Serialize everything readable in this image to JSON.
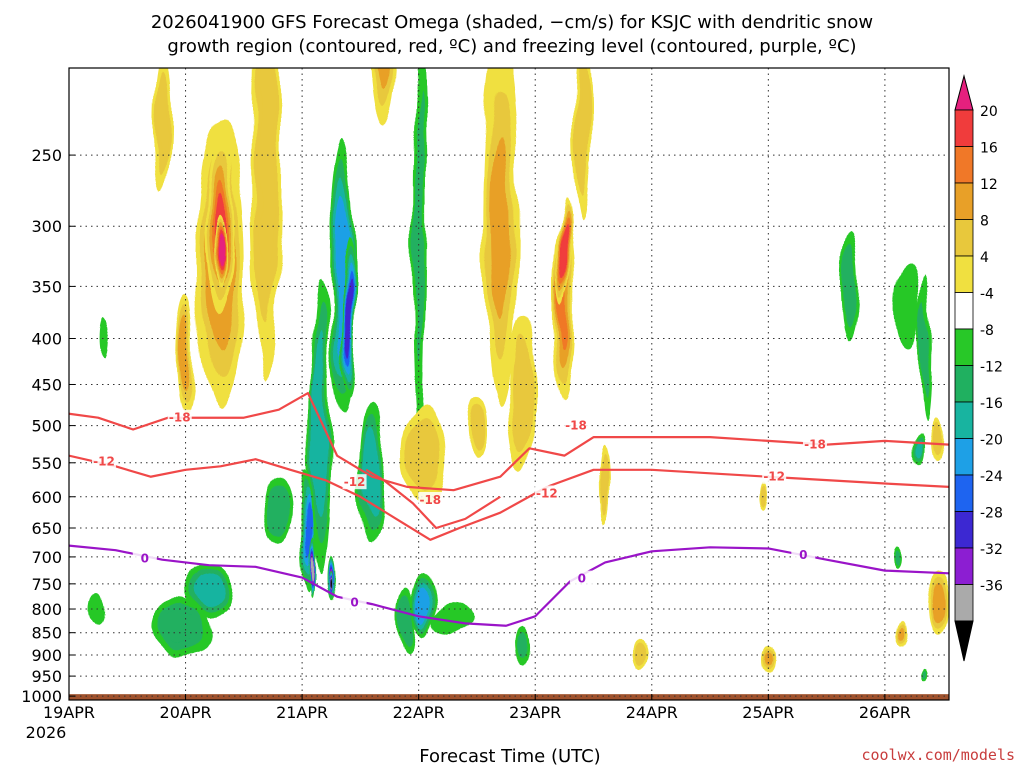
{
  "chart_data": {
    "type": "heatmap",
    "title_line1": "2026041900 GFS Forecast Omega (shaded, −cm/s) for KSJC with dendritic snow",
    "title_line2": "growth region (contoured, red, ºC) and freezing level (contoured, purple, ºC)",
    "xlabel": "Forecast Time (UTC)",
    "watermark": "coolwx.com/models",
    "x_start_year": "2026",
    "x_ticks": [
      "19APR",
      "20APR",
      "21APR",
      "22APR",
      "23APR",
      "24APR",
      "25APR",
      "26APR"
    ],
    "x_range_days": [
      0,
      7.55
    ],
    "y_ticks": [
      250,
      300,
      350,
      400,
      450,
      500,
      550,
      600,
      650,
      700,
      750,
      800,
      850,
      900,
      950,
      1000
    ],
    "y_range_hpa": [
      200,
      1010
    ],
    "colorbar": {
      "labels": [
        "20",
        "16",
        "12",
        "8",
        "4",
        "-4",
        "-8",
        "-12",
        "-16",
        "-20",
        "-24",
        "-28",
        "-32",
        "-36"
      ],
      "colors": [
        "#f03c3c",
        "#f07828",
        "#e8a028",
        "#e8c83c",
        "#f0e040",
        "#ffffff",
        "#28c828",
        "#20b060",
        "#18b4a0",
        "#1ea0e6",
        "#1e64f0",
        "#3c28d2",
        "#8c1ed2",
        "#aaaaaa"
      ],
      "top_color": "#e6207e",
      "bottom_color": "#000000"
    },
    "omega_blobs": [
      {
        "t": 0.3,
        "p": 400,
        "dt": 0.05,
        "dp": 60,
        "v": -6
      },
      {
        "t": 0.25,
        "p": 800,
        "dt": 0.07,
        "dp": 90,
        "v": -6
      },
      {
        "t": 0.42,
        "p": 160,
        "dt": 0.04,
        "dp": 70,
        "v": -6
      },
      {
        "t": 1.3,
        "p": 330,
        "dt": 0.22,
        "dp": 230,
        "v": 10
      },
      {
        "t": 1.3,
        "p": 300,
        "dt": 0.13,
        "dp": 130,
        "v": 16
      },
      {
        "t": 1.3,
        "p": 320,
        "dt": 0.05,
        "dp": 60,
        "v": 22
      },
      {
        "t": 1.0,
        "p": 420,
        "dt": 0.08,
        "dp": 130,
        "v": 9
      },
      {
        "t": 1.7,
        "p": 250,
        "dt": 0.12,
        "dp": 260,
        "v": 7
      },
      {
        "t": 0.8,
        "p": 230,
        "dt": 0.08,
        "dp": 80,
        "v": 5
      },
      {
        "t": 0.95,
        "p": 840,
        "dt": 0.32,
        "dp": 150,
        "v": -10
      },
      {
        "t": 1.2,
        "p": 760,
        "dt": 0.22,
        "dp": 120,
        "v": -13
      },
      {
        "t": 2.05,
        "p": 650,
        "dt": 0.07,
        "dp": 240,
        "v": -20
      },
      {
        "t": 2.08,
        "p": 720,
        "dt": 0.025,
        "dp": 120,
        "v": -34
      },
      {
        "t": 2.15,
        "p": 500,
        "dt": 0.11,
        "dp": 420,
        "v": -15
      },
      {
        "t": 2.35,
        "p": 340,
        "dt": 0.13,
        "dp": 260,
        "v": -17
      },
      {
        "t": 2.4,
        "p": 380,
        "dt": 0.07,
        "dp": 170,
        "v": -27
      },
      {
        "t": 2.25,
        "p": 740,
        "dt": 0.04,
        "dp": 80,
        "v": -28
      },
      {
        "t": 2.25,
        "p": 750,
        "dt": 0.018,
        "dp": 45,
        "v": -36
      },
      {
        "t": 1.8,
        "p": 620,
        "dt": 0.15,
        "dp": 130,
        "v": -10
      },
      {
        "t": 2.6,
        "p": 560,
        "dt": 0.13,
        "dp": 230,
        "v": -13
      },
      {
        "t": 3.0,
        "p": 300,
        "dt": 0.08,
        "dp": 360,
        "v": -8
      },
      {
        "t": 3.05,
        "p": 790,
        "dt": 0.12,
        "dp": 140,
        "v": -19
      },
      {
        "t": 3.3,
        "p": 820,
        "dt": 0.22,
        "dp": 90,
        "v": -7
      },
      {
        "t": 2.9,
        "p": 820,
        "dt": 0.09,
        "dp": 160,
        "v": -9
      },
      {
        "t": 2.7,
        "p": 180,
        "dt": 0.12,
        "dp": 90,
        "v": 9
      },
      {
        "t": 3.05,
        "p": 540,
        "dt": 0.18,
        "dp": 140,
        "v": 6
      },
      {
        "t": 3.7,
        "p": 300,
        "dt": 0.15,
        "dp": 260,
        "v": 8
      },
      {
        "t": 3.9,
        "p": 460,
        "dt": 0.12,
        "dp": 180,
        "v": 6
      },
      {
        "t": 4.25,
        "p": 370,
        "dt": 0.09,
        "dp": 170,
        "v": 12
      },
      {
        "t": 4.25,
        "p": 320,
        "dt": 0.05,
        "dp": 90,
        "v": 19
      },
      {
        "t": 4.4,
        "p": 230,
        "dt": 0.08,
        "dp": 110,
        "v": 6
      },
      {
        "t": 4.6,
        "p": 580,
        "dt": 0.05,
        "dp": 120,
        "v": 5
      },
      {
        "t": 3.5,
        "p": 500,
        "dt": 0.08,
        "dp": 80,
        "v": 5
      },
      {
        "t": 3.9,
        "p": 880,
        "dt": 0.08,
        "dp": 120,
        "v": -8
      },
      {
        "t": 4.9,
        "p": 900,
        "dt": 0.07,
        "dp": 70,
        "v": 6
      },
      {
        "t": 5.95,
        "p": 600,
        "dt": 0.04,
        "dp": 50,
        "v": 5
      },
      {
        "t": 6.0,
        "p": 910,
        "dt": 0.05,
        "dp": 60,
        "v": 8
      },
      {
        "t": 6.7,
        "p": 350,
        "dt": 0.1,
        "dp": 120,
        "v": -9
      },
      {
        "t": 7.2,
        "p": 370,
        "dt": 0.15,
        "dp": 110,
        "v": -7
      },
      {
        "t": 7.35,
        "p": 410,
        "dt": 0.07,
        "dp": 200,
        "v": -8
      },
      {
        "t": 7.1,
        "p": 700,
        "dt": 0.05,
        "dp": 50,
        "v": -8
      },
      {
        "t": 7.3,
        "p": 530,
        "dt": 0.05,
        "dp": 50,
        "v": -12
      },
      {
        "t": 7.45,
        "p": 520,
        "dt": 0.06,
        "dp": 60,
        "v": 6
      },
      {
        "t": 7.45,
        "p": 790,
        "dt": 0.08,
        "dp": 130,
        "v": 10
      },
      {
        "t": 7.15,
        "p": 850,
        "dt": 0.04,
        "dp": 50,
        "v": 8
      },
      {
        "t": 7.35,
        "p": 950,
        "dt": 0.04,
        "dp": 40,
        "v": -8
      }
    ],
    "contours": [
      {
        "name": "-18",
        "color": "#f04848",
        "points": [
          [
            0,
            485
          ],
          [
            0.25,
            490
          ],
          [
            0.55,
            505
          ],
          [
            0.85,
            490
          ],
          [
            1.2,
            490
          ],
          [
            1.5,
            490
          ],
          [
            1.8,
            480
          ],
          [
            2.05,
            460
          ],
          [
            2.3,
            540
          ],
          [
            2.6,
            570
          ],
          [
            2.9,
            585
          ],
          [
            3.3,
            590
          ],
          [
            3.7,
            570
          ],
          [
            3.95,
            530
          ],
          [
            4.25,
            540
          ],
          [
            4.5,
            515
          ],
          [
            5.0,
            515
          ],
          [
            5.5,
            515
          ],
          [
            6.0,
            520
          ],
          [
            6.5,
            525
          ],
          [
            7.0,
            520
          ],
          [
            7.55,
            525
          ]
        ],
        "labels": [
          [
            0.95,
            490
          ],
          [
            4.35,
            500
          ],
          [
            6.4,
            525
          ]
        ]
      },
      {
        "name": "-18 (lower)",
        "color": "#f04848",
        "points": [
          [
            2.55,
            560
          ],
          [
            2.7,
            575
          ],
          [
            2.95,
            610
          ],
          [
            3.15,
            650
          ],
          [
            3.4,
            635
          ],
          [
            3.7,
            600
          ]
        ],
        "labels": [
          [
            3.1,
            605
          ]
        ]
      },
      {
        "name": "-12",
        "color": "#f04848",
        "points": [
          [
            0,
            540
          ],
          [
            0.4,
            555
          ],
          [
            0.7,
            570
          ],
          [
            1.0,
            560
          ],
          [
            1.3,
            555
          ],
          [
            1.6,
            545
          ],
          [
            1.9,
            560
          ],
          [
            2.2,
            575
          ],
          [
            2.5,
            600
          ],
          [
            2.85,
            640
          ],
          [
            3.1,
            670
          ],
          [
            3.35,
            650
          ],
          [
            3.7,
            625
          ],
          [
            4.1,
            585
          ],
          [
            4.5,
            560
          ],
          [
            5.0,
            560
          ],
          [
            5.5,
            565
          ],
          [
            6.0,
            570
          ],
          [
            6.5,
            575
          ],
          [
            7.0,
            580
          ],
          [
            7.55,
            585
          ]
        ],
        "labels": [
          [
            0.3,
            548
          ],
          [
            2.45,
            578
          ],
          [
            4.1,
            595
          ],
          [
            6.05,
            570
          ]
        ]
      },
      {
        "name": "0",
        "color": "#9a14c8",
        "points": [
          [
            0,
            680
          ],
          [
            0.4,
            688
          ],
          [
            0.8,
            705
          ],
          [
            1.2,
            715
          ],
          [
            1.6,
            718
          ],
          [
            2.0,
            738
          ],
          [
            2.3,
            775
          ],
          [
            2.6,
            790
          ],
          [
            3.0,
            815
          ],
          [
            3.4,
            830
          ],
          [
            3.75,
            835
          ],
          [
            4.0,
            815
          ],
          [
            4.3,
            745
          ],
          [
            4.6,
            710
          ],
          [
            5.0,
            690
          ],
          [
            5.5,
            683
          ],
          [
            6.0,
            685
          ],
          [
            6.5,
            705
          ],
          [
            7.0,
            725
          ],
          [
            7.55,
            730
          ]
        ],
        "labels": [
          [
            0.65,
            703
          ],
          [
            2.45,
            787
          ],
          [
            4.4,
            740
          ],
          [
            6.3,
            697
          ]
        ]
      }
    ],
    "ground_color": "#a0522d"
  }
}
